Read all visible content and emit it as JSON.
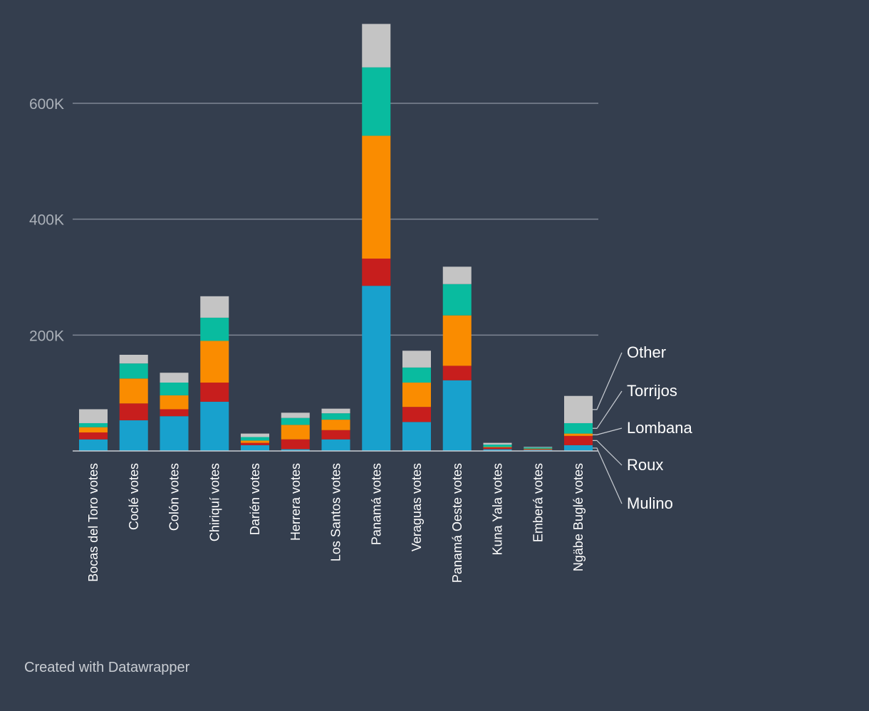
{
  "footer": {
    "credit": "Created with Datawrapper"
  },
  "chart_data": {
    "type": "bar",
    "stacked": true,
    "categories": [
      "Bocas del Toro votes",
      "Coclé votes",
      "Colón votes",
      "Chiriquí votes",
      "Darién votes",
      "Herrera votes",
      "Los Santos votes",
      "Panamá votes",
      "Veraguas votes",
      "Panamá Oeste votes",
      "Kuna Yala votes",
      "Emberá votes",
      "Ngäbe Buglé votes"
    ],
    "series": [
      {
        "name": "Mulino",
        "color": "#18a1cd",
        "values": [
          20000,
          53000,
          60000,
          85000,
          10000,
          3000,
          20000,
          285000,
          50000,
          122000,
          3000,
          2000,
          10000
        ]
      },
      {
        "name": "Roux",
        "color": "#c71e1d",
        "values": [
          12000,
          29000,
          12000,
          33000,
          4000,
          17000,
          16000,
          47000,
          26000,
          25000,
          3000,
          1000,
          16000
        ]
      },
      {
        "name": "Lombana",
        "color": "#fa8c00",
        "values": [
          9000,
          43000,
          24000,
          72000,
          4000,
          25000,
          18000,
          212000,
          42000,
          87000,
          1000,
          1000,
          4000
        ]
      },
      {
        "name": "Torrijos",
        "color": "#09bb9f",
        "values": [
          7000,
          26000,
          22000,
          40000,
          6000,
          12000,
          11000,
          118000,
          26000,
          54000,
          4000,
          2000,
          18000
        ]
      },
      {
        "name": "Other",
        "color": "#c4c4c4",
        "values": [
          24000,
          15000,
          17000,
          37000,
          6000,
          9000,
          8000,
          75000,
          29000,
          30000,
          3000,
          1000,
          47000
        ]
      }
    ],
    "y_ticks": [
      200000,
      400000,
      600000
    ],
    "y_tick_labels": [
      "200K",
      "400K",
      "600K"
    ],
    "ylim": [
      0,
      740000
    ],
    "grid": true,
    "legend_position": "right, labels beside last bar"
  }
}
